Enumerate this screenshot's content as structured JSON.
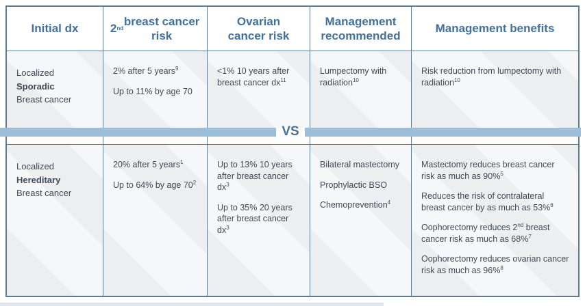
{
  "table": {
    "headers": [
      "Initial dx",
      "2^nd^ breast cancer risk",
      "Ovarian cancer risk",
      "Management recommended",
      "Management benefits"
    ],
    "divider_label": "VS",
    "rows": [
      {
        "id": "sporadic",
        "initial_dx": [
          "Localized",
          "*Sporadic*",
          "Breast cancer"
        ],
        "second_breast_cancer_risk": [
          "2% after 5 years^9^",
          "Up to 11% by age 70"
        ],
        "ovarian_cancer_risk": [
          "<1% 10 years after breast cancer dx^11^"
        ],
        "management_recommended": [
          "Lumpectomy with radiation^10^"
        ],
        "management_benefits": [
          "Risk reduction from lumpectomy with radiation^10^"
        ]
      },
      {
        "id": "hereditary",
        "initial_dx": [
          "Localized",
          "*Hereditary*",
          "Breast cancer"
        ],
        "second_breast_cancer_risk": [
          "20% after 5 years^1^",
          "Up to 64% by age 70^2^"
        ],
        "ovarian_cancer_risk": [
          "Up to 13% 10 years after breast cancer dx^3^",
          "Up to 35% 20 years after breast cancer dx^3^"
        ],
        "management_recommended": [
          "Bilateral mastectomy",
          "Prophylactic BSO",
          "Chemoprevention^4^"
        ],
        "management_benefits": [
          "Mastectomy reduces breast cancer risk as much as 90%^5^",
          "Reduces the risk of contralateral breast cancer by as much as 53%^6^",
          "Oophorectomy reduces 2^nd^ breast cancer risk as much as 68%^7^",
          "Oophorectomy reduces ovarian cancer risk as much as 96%^8^"
        ]
      }
    ]
  },
  "colors": {
    "header_text": "#41719c",
    "body_text": "#3f4a56",
    "border": "#5d7a90",
    "cell_background": "#eceef0",
    "divider_bar": "#9dbed9",
    "divider_text": "#4a7095"
  }
}
